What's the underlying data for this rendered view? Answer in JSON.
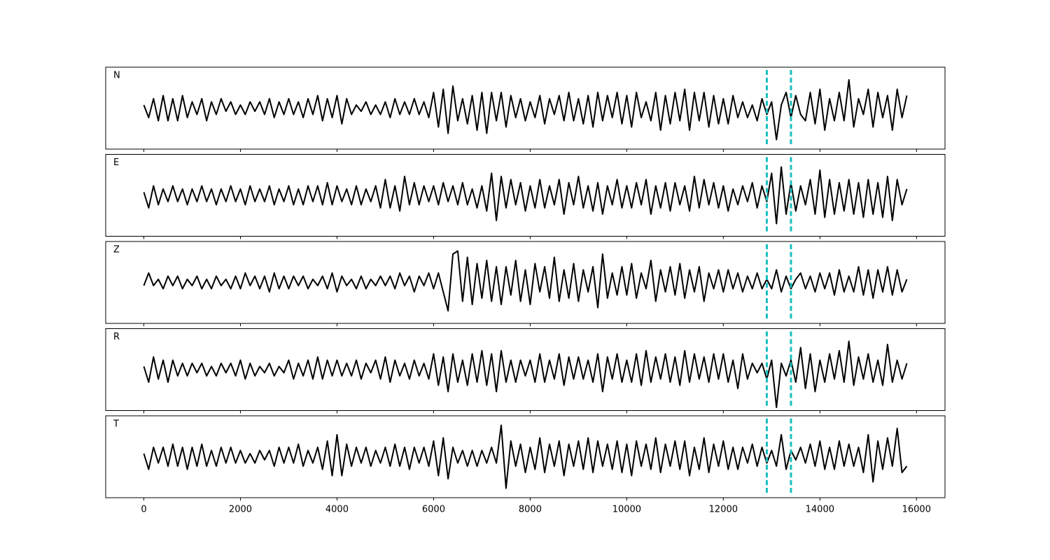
{
  "chart_data": {
    "type": "line",
    "subplots": true,
    "x": [
      0,
      100,
      200,
      300,
      400,
      500,
      600,
      700,
      800,
      900,
      1000,
      1100,
      1200,
      1300,
      1400,
      1500,
      1600,
      1700,
      1800,
      1900,
      2000,
      2100,
      2200,
      2300,
      2400,
      2500,
      2600,
      2700,
      2800,
      2900,
      3000,
      3100,
      3200,
      3300,
      3400,
      3500,
      3600,
      3700,
      3800,
      3900,
      4000,
      4100,
      4200,
      4300,
      4400,
      4500,
      4600,
      4700,
      4800,
      4900,
      5000,
      5100,
      5200,
      5300,
      5400,
      5500,
      5600,
      5700,
      5800,
      5900,
      6000,
      6100,
      6200,
      6300,
      6400,
      6500,
      6600,
      6700,
      6800,
      6900,
      7000,
      7100,
      7200,
      7300,
      7400,
      7500,
      7600,
      7700,
      7800,
      7900,
      8000,
      8100,
      8200,
      8300,
      8400,
      8500,
      8600,
      8700,
      8800,
      8900,
      9000,
      9100,
      9200,
      9300,
      9400,
      9500,
      9600,
      9700,
      9800,
      9900,
      10000,
      10100,
      10200,
      10300,
      10400,
      10500,
      10600,
      10700,
      10800,
      10900,
      11000,
      11100,
      11200,
      11300,
      11400,
      11500,
      11600,
      11700,
      11800,
      11900,
      12000,
      12100,
      12200,
      12300,
      12400,
      12500,
      12600,
      12700,
      12800,
      12900,
      13000,
      13100,
      13200,
      13300,
      13400,
      13500,
      13600,
      13700,
      13800,
      13900,
      14000,
      14100,
      14200,
      14300,
      14400,
      14500,
      14600,
      14700,
      14800,
      14900,
      15000,
      15100,
      15200,
      15300,
      15400,
      15500,
      15600,
      15700,
      15800
    ],
    "xlim": [
      -790,
      16590
    ],
    "xticks": [
      0,
      2000,
      4000,
      6000,
      8000,
      10000,
      12000,
      14000,
      16000
    ],
    "ylim": [
      -1.3,
      1.3
    ],
    "series": [
      {
        "name": "N",
        "color": "#000000",
        "values": [
          0.1,
          -0.3,
          0.3,
          -0.4,
          0.4,
          -0.4,
          0.3,
          -0.4,
          0.4,
          -0.3,
          0.2,
          -0.2,
          0.3,
          -0.4,
          0.2,
          -0.2,
          0.3,
          -0.1,
          0.2,
          -0.2,
          0.1,
          -0.2,
          0.2,
          -0.1,
          0.2,
          -0.2,
          0.3,
          -0.3,
          0.2,
          -0.2,
          0.3,
          -0.2,
          0.2,
          -0.3,
          0.3,
          -0.2,
          0.4,
          -0.4,
          0.3,
          -0.3,
          0.4,
          -0.5,
          0.3,
          -0.2,
          0.1,
          -0.1,
          0.2,
          -0.2,
          0.1,
          -0.2,
          0.2,
          -0.3,
          0.3,
          -0.2,
          0.2,
          -0.2,
          0.3,
          -0.2,
          0.2,
          -0.3,
          0.5,
          -0.6,
          0.6,
          -0.8,
          0.7,
          -0.4,
          0.3,
          -0.5,
          0.4,
          -0.7,
          0.5,
          -0.8,
          0.5,
          -0.4,
          0.5,
          -0.6,
          0.4,
          -0.3,
          0.3,
          -0.4,
          0.2,
          -0.3,
          0.4,
          -0.5,
          0.3,
          -0.2,
          0.4,
          -0.4,
          0.5,
          -0.4,
          0.3,
          -0.5,
          0.4,
          -0.6,
          0.5,
          -0.4,
          0.4,
          -0.3,
          0.5,
          -0.5,
          0.4,
          -0.6,
          0.5,
          -0.3,
          0.2,
          -0.4,
          0.5,
          -0.7,
          0.4,
          -0.5,
          0.5,
          -0.4,
          0.6,
          -0.7,
          0.5,
          -0.4,
          0.5,
          -0.6,
          0.4,
          -0.5,
          0.3,
          -0.5,
          0.4,
          -0.3,
          0.2,
          -0.3,
          0.1,
          -0.4,
          0.3,
          -0.2,
          0.2,
          -1.0,
          0.1,
          0.5,
          -0.3,
          0.4,
          -0.2,
          -0.4,
          0.5,
          -0.5,
          0.6,
          -0.7,
          0.3,
          -0.4,
          0.5,
          -0.4,
          0.9,
          -0.6,
          0.3,
          -0.2,
          0.6,
          -0.6,
          0.5,
          -0.3,
          0.4,
          -0.7,
          0.6,
          -0.3,
          0.4
        ]
      },
      {
        "name": "E",
        "color": "#000000",
        "values": [
          0.1,
          -0.4,
          0.3,
          -0.3,
          0.2,
          -0.2,
          0.3,
          -0.2,
          0.2,
          -0.3,
          0.2,
          -0.2,
          0.3,
          -0.2,
          0.2,
          -0.3,
          0.2,
          -0.2,
          0.3,
          -0.2,
          0.2,
          -0.3,
          0.3,
          -0.2,
          0.2,
          -0.2,
          0.3,
          -0.3,
          0.2,
          -0.2,
          0.3,
          -0.3,
          0.2,
          -0.3,
          0.3,
          -0.2,
          0.3,
          -0.3,
          0.4,
          -0.3,
          0.3,
          -0.2,
          0.2,
          -0.3,
          0.3,
          -0.3,
          0.2,
          -0.2,
          0.3,
          -0.4,
          0.5,
          -0.4,
          0.3,
          -0.5,
          0.6,
          -0.3,
          0.4,
          -0.3,
          0.3,
          -0.2,
          0.3,
          -0.3,
          0.4,
          -0.2,
          0.3,
          -0.3,
          0.4,
          -0.3,
          0.2,
          -0.4,
          0.3,
          -0.5,
          0.7,
          -0.8,
          0.6,
          -0.4,
          0.5,
          -0.3,
          0.4,
          -0.5,
          0.3,
          -0.4,
          0.5,
          -0.4,
          0.3,
          -0.3,
          0.5,
          -0.6,
          0.4,
          -0.3,
          0.6,
          -0.4,
          0.3,
          -0.5,
          0.4,
          -0.6,
          0.3,
          -0.3,
          0.5,
          -0.4,
          0.3,
          -0.4,
          0.4,
          -0.3,
          0.5,
          -0.6,
          0.3,
          -0.4,
          0.4,
          -0.5,
          0.4,
          -0.3,
          0.3,
          -0.5,
          0.6,
          -0.4,
          0.5,
          -0.3,
          0.4,
          -0.4,
          0.3,
          -0.5,
          0.2,
          -0.3,
          0.3,
          -0.2,
          0.4,
          -0.4,
          0.3,
          -0.2,
          0.7,
          -0.9,
          0.9,
          -0.6,
          0.4,
          -0.5,
          0.3,
          -0.3,
          0.5,
          -0.6,
          0.8,
          -0.7,
          0.5,
          -0.6,
          0.4,
          -0.5,
          0.5,
          -0.6,
          0.4,
          -0.7,
          0.5,
          -0.6,
          0.4,
          -0.7,
          0.6,
          -0.8,
          0.5,
          -0.3,
          0.2
        ]
      },
      {
        "name": "Z",
        "color": "#000000",
        "values": [
          -0.1,
          0.3,
          -0.1,
          0.1,
          -0.2,
          0.2,
          -0.1,
          0.2,
          -0.2,
          0.1,
          -0.1,
          0.2,
          -0.2,
          0.1,
          -0.2,
          0.2,
          -0.1,
          0.1,
          -0.2,
          0.2,
          -0.2,
          0.3,
          -0.1,
          0.2,
          -0.2,
          0.2,
          -0.3,
          0.3,
          -0.2,
          0.2,
          -0.2,
          0.2,
          -0.1,
          0.2,
          -0.2,
          0.1,
          -0.1,
          0.2,
          -0.2,
          0.3,
          -0.3,
          0.2,
          -0.1,
          0.1,
          -0.2,
          0.2,
          -0.2,
          0.1,
          -0.1,
          0.2,
          -0.1,
          0.2,
          -0.2,
          0.3,
          -0.1,
          0.2,
          -0.3,
          0.2,
          -0.1,
          0.3,
          -0.2,
          0.3,
          -0.3,
          -0.9,
          0.9,
          1.0,
          -0.6,
          0.8,
          -0.7,
          0.6,
          -0.5,
          0.7,
          -0.6,
          0.5,
          -0.7,
          0.5,
          -0.4,
          0.7,
          -0.6,
          0.4,
          -0.7,
          0.6,
          -0.3,
          0.5,
          -0.5,
          0.8,
          -0.6,
          0.4,
          -0.5,
          0.6,
          -0.6,
          0.4,
          -0.3,
          0.5,
          -0.8,
          0.9,
          -0.5,
          0.3,
          -0.4,
          0.5,
          -0.4,
          0.6,
          -0.5,
          0.3,
          -0.2,
          0.7,
          -0.6,
          0.4,
          -0.3,
          0.5,
          -0.4,
          0.6,
          -0.5,
          0.4,
          -0.3,
          0.5,
          -0.6,
          0.3,
          -0.2,
          0.4,
          -0.3,
          0.4,
          -0.2,
          0.3,
          -0.3,
          0.2,
          -0.2,
          0.3,
          -0.2,
          0.1,
          -0.2,
          0.4,
          -0.3,
          0.2,
          -0.2,
          0.1,
          0.3,
          -0.2,
          0.2,
          -0.3,
          0.3,
          -0.2,
          0.3,
          -0.4,
          0.4,
          -0.3,
          0.2,
          -0.3,
          0.5,
          -0.4,
          0.4,
          -0.5,
          0.4,
          -0.3,
          0.5,
          -0.4,
          0.4,
          -0.3,
          0.1
        ]
      },
      {
        "name": "R",
        "color": "#000000",
        "values": [
          0.1,
          -0.4,
          0.4,
          -0.3,
          0.3,
          -0.4,
          0.3,
          -0.2,
          0.2,
          -0.2,
          0.2,
          -0.1,
          0.2,
          -0.2,
          0.1,
          -0.2,
          0.2,
          -0.1,
          0.2,
          -0.2,
          0.3,
          -0.3,
          0.2,
          -0.2,
          0.1,
          -0.1,
          0.2,
          -0.2,
          0.1,
          -0.1,
          0.3,
          -0.3,
          0.2,
          -0.2,
          0.3,
          -0.3,
          0.4,
          -0.3,
          0.3,
          -0.2,
          0.3,
          -0.2,
          0.2,
          -0.2,
          0.3,
          -0.3,
          0.2,
          -0.1,
          0.3,
          -0.3,
          0.4,
          -0.4,
          0.3,
          -0.2,
          0.2,
          -0.3,
          0.3,
          -0.2,
          0.2,
          -0.3,
          0.5,
          -0.5,
          0.4,
          -0.7,
          0.5,
          -0.4,
          0.3,
          -0.5,
          0.5,
          -0.4,
          0.6,
          -0.5,
          0.5,
          -0.7,
          0.6,
          -0.4,
          0.3,
          -0.4,
          0.3,
          -0.2,
          0.3,
          -0.4,
          0.5,
          -0.4,
          0.3,
          -0.3,
          0.5,
          -0.5,
          0.4,
          -0.3,
          0.4,
          -0.3,
          0.3,
          -0.4,
          0.5,
          -0.7,
          0.4,
          -0.3,
          0.5,
          -0.4,
          0.3,
          -0.4,
          0.5,
          -0.5,
          0.6,
          -0.4,
          0.4,
          -0.3,
          0.5,
          -0.4,
          0.4,
          -0.5,
          0.6,
          -0.4,
          0.5,
          -0.3,
          0.4,
          -0.4,
          0.5,
          -0.3,
          0.5,
          -0.4,
          0.3,
          -0.6,
          0.5,
          -0.3,
          0.2,
          -0.1,
          0.2,
          -0.3,
          0.3,
          -1.2,
          0.2,
          -0.2,
          0.3,
          -0.4,
          0.7,
          -0.6,
          0.5,
          -0.7,
          0.3,
          -0.4,
          0.5,
          -0.3,
          0.6,
          -0.4,
          0.9,
          -0.5,
          0.4,
          -0.3,
          0.5,
          -0.4,
          0.3,
          -0.5,
          0.8,
          -0.4,
          0.3,
          -0.3,
          0.2
        ]
      },
      {
        "name": "T",
        "color": "#000000",
        "values": [
          0.1,
          -0.4,
          0.3,
          -0.2,
          0.3,
          -0.3,
          0.4,
          -0.3,
          0.3,
          -0.4,
          0.3,
          -0.3,
          0.4,
          -0.3,
          0.2,
          -0.3,
          0.3,
          -0.2,
          0.3,
          -0.2,
          0.2,
          -0.2,
          0.1,
          -0.2,
          0.2,
          -0.1,
          0.2,
          -0.3,
          0.3,
          -0.2,
          0.3,
          -0.2,
          0.4,
          -0.3,
          0.2,
          -0.2,
          0.3,
          -0.4,
          0.5,
          -0.6,
          0.7,
          -0.6,
          0.4,
          -0.3,
          0.3,
          -0.2,
          0.3,
          -0.3,
          0.2,
          -0.2,
          0.3,
          -0.3,
          0.4,
          -0.3,
          0.3,
          -0.4,
          0.3,
          -0.2,
          0.3,
          -0.3,
          0.5,
          -0.6,
          0.6,
          -0.7,
          0.3,
          -0.2,
          0.2,
          -0.3,
          0.2,
          -0.3,
          0.2,
          -0.2,
          0.3,
          -0.2,
          1.0,
          -1.0,
          0.5,
          -0.3,
          0.4,
          -0.5,
          0.3,
          -0.4,
          0.6,
          -0.5,
          0.4,
          -0.3,
          0.5,
          -0.6,
          0.4,
          -0.3,
          0.5,
          -0.4,
          0.6,
          -0.5,
          0.5,
          -0.3,
          0.4,
          -0.4,
          0.5,
          -0.5,
          0.4,
          -0.6,
          0.5,
          -0.3,
          0.4,
          -0.4,
          0.6,
          -0.5,
          0.4,
          -0.3,
          0.5,
          -0.4,
          0.5,
          -0.6,
          0.3,
          -0.4,
          0.6,
          -0.5,
          0.4,
          -0.3,
          0.5,
          -0.4,
          0.3,
          -0.4,
          0.3,
          -0.2,
          0.4,
          -0.3,
          0.3,
          -0.2,
          0.2,
          -0.3,
          0.7,
          -0.4,
          0.2,
          -0.1,
          0.3,
          -0.2,
          0.4,
          -0.3,
          0.5,
          -0.4,
          0.3,
          -0.4,
          0.5,
          -0.3,
          0.4,
          -0.3,
          0.3,
          -0.5,
          0.7,
          -0.8,
          0.5,
          -0.4,
          0.6,
          -0.3,
          0.9,
          -0.5,
          -0.3
        ]
      }
    ],
    "vlines": [
      12900,
      13400
    ],
    "vline_color": "#17bfbf"
  }
}
